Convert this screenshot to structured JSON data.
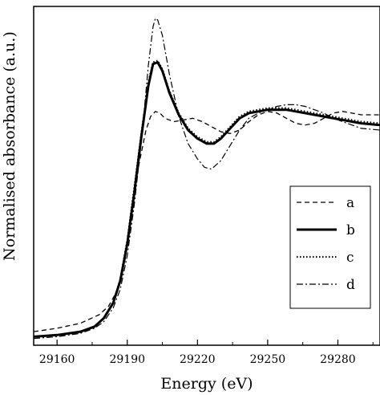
{
  "chart_data": {
    "type": "line",
    "title": "",
    "xlabel": "Energy (eV)",
    "ylabel": "Normalised absorbance (a.u.)",
    "xlim": [
      29150,
      29298
    ],
    "ylim": [
      -0.05,
      1.95
    ],
    "y_tick_labels": false,
    "x_ticks": [
      29160,
      29190,
      29220,
      29250,
      29280
    ],
    "grid": false,
    "legend_position": "right-middle",
    "series": [
      {
        "name": "a",
        "style": "dashed",
        "points": [
          [
            29150,
            0.03
          ],
          [
            29160,
            0.05
          ],
          [
            29170,
            0.08
          ],
          [
            29178,
            0.13
          ],
          [
            29182,
            0.18
          ],
          [
            29186,
            0.28
          ],
          [
            29189,
            0.45
          ],
          [
            29192,
            0.72
          ],
          [
            29195,
            1.02
          ],
          [
            29198,
            1.22
          ],
          [
            29200,
            1.3
          ],
          [
            29202,
            1.33
          ],
          [
            29204,
            1.32
          ],
          [
            29206,
            1.29
          ],
          [
            29210,
            1.27
          ],
          [
            29214,
            1.28
          ],
          [
            29218,
            1.29
          ],
          [
            29222,
            1.27
          ],
          [
            29226,
            1.24
          ],
          [
            29230,
            1.21
          ],
          [
            29234,
            1.2
          ],
          [
            29238,
            1.22
          ],
          [
            29242,
            1.27
          ],
          [
            29246,
            1.31
          ],
          [
            29250,
            1.33
          ],
          [
            29254,
            1.32
          ],
          [
            29258,
            1.29
          ],
          [
            29262,
            1.26
          ],
          [
            29266,
            1.25
          ],
          [
            29270,
            1.26
          ],
          [
            29274,
            1.29
          ],
          [
            29278,
            1.32
          ],
          [
            29282,
            1.33
          ],
          [
            29286,
            1.32
          ],
          [
            29290,
            1.31
          ],
          [
            29298,
            1.31
          ]
        ]
      },
      {
        "name": "b",
        "style": "solid-thick",
        "points": [
          [
            29150,
            0.0
          ],
          [
            29160,
            0.01
          ],
          [
            29170,
            0.03
          ],
          [
            29176,
            0.06
          ],
          [
            29180,
            0.11
          ],
          [
            29184,
            0.2
          ],
          [
            29187,
            0.33
          ],
          [
            29190,
            0.55
          ],
          [
            29193,
            0.85
          ],
          [
            29196,
            1.18
          ],
          [
            29199,
            1.48
          ],
          [
            29201,
            1.61
          ],
          [
            29203,
            1.62
          ],
          [
            29205,
            1.57
          ],
          [
            29208,
            1.44
          ],
          [
            29212,
            1.31
          ],
          [
            29216,
            1.22
          ],
          [
            29220,
            1.17
          ],
          [
            29224,
            1.14
          ],
          [
            29227,
            1.14
          ],
          [
            29230,
            1.17
          ],
          [
            29234,
            1.23
          ],
          [
            29238,
            1.29
          ],
          [
            29242,
            1.32
          ],
          [
            29246,
            1.33
          ],
          [
            29250,
            1.34
          ],
          [
            29254,
            1.34
          ],
          [
            29258,
            1.34
          ],
          [
            29262,
            1.33
          ],
          [
            29266,
            1.32
          ],
          [
            29270,
            1.31
          ],
          [
            29274,
            1.3
          ],
          [
            29278,
            1.29
          ],
          [
            29282,
            1.28
          ],
          [
            29286,
            1.27
          ],
          [
            29290,
            1.26
          ],
          [
            29298,
            1.25
          ]
        ]
      },
      {
        "name": "c",
        "style": "dotted",
        "points": [
          [
            29150,
            0.0
          ],
          [
            29160,
            0.01
          ],
          [
            29170,
            0.03
          ],
          [
            29176,
            0.06
          ],
          [
            29180,
            0.11
          ],
          [
            29184,
            0.2
          ],
          [
            29187,
            0.34
          ],
          [
            29190,
            0.57
          ],
          [
            29193,
            0.88
          ],
          [
            29196,
            1.2
          ],
          [
            29199,
            1.5
          ],
          [
            29201,
            1.62
          ],
          [
            29203,
            1.63
          ],
          [
            29205,
            1.58
          ],
          [
            29208,
            1.45
          ],
          [
            29212,
            1.32
          ],
          [
            29216,
            1.23
          ],
          [
            29220,
            1.18
          ],
          [
            29224,
            1.15
          ],
          [
            29227,
            1.15
          ],
          [
            29230,
            1.18
          ],
          [
            29234,
            1.24
          ],
          [
            29238,
            1.3
          ],
          [
            29242,
            1.33
          ],
          [
            29246,
            1.34
          ],
          [
            29250,
            1.35
          ],
          [
            29254,
            1.35
          ],
          [
            29258,
            1.35
          ],
          [
            29262,
            1.34
          ],
          [
            29266,
            1.33
          ],
          [
            29270,
            1.32
          ],
          [
            29274,
            1.31
          ],
          [
            29278,
            1.3
          ],
          [
            29282,
            1.29
          ],
          [
            29286,
            1.28
          ],
          [
            29290,
            1.27
          ],
          [
            29298,
            1.26
          ]
        ]
      },
      {
        "name": "d",
        "style": "dash-dot",
        "points": [
          [
            29150,
            -0.01
          ],
          [
            29160,
            0.0
          ],
          [
            29170,
            0.02
          ],
          [
            29176,
            0.05
          ],
          [
            29180,
            0.09
          ],
          [
            29184,
            0.17
          ],
          [
            29187,
            0.28
          ],
          [
            29190,
            0.48
          ],
          [
            29193,
            0.78
          ],
          [
            29196,
            1.15
          ],
          [
            29199,
            1.6
          ],
          [
            29201,
            1.83
          ],
          [
            29202,
            1.88
          ],
          [
            29203,
            1.87
          ],
          [
            29205,
            1.78
          ],
          [
            29208,
            1.55
          ],
          [
            29212,
            1.3
          ],
          [
            29216,
            1.14
          ],
          [
            29220,
            1.05
          ],
          [
            29223,
            1.0
          ],
          [
            29226,
            0.99
          ],
          [
            29230,
            1.04
          ],
          [
            29234,
            1.13
          ],
          [
            29238,
            1.22
          ],
          [
            29242,
            1.29
          ],
          [
            29246,
            1.32
          ],
          [
            29250,
            1.34
          ],
          [
            29254,
            1.36
          ],
          [
            29258,
            1.37
          ],
          [
            29262,
            1.37
          ],
          [
            29266,
            1.36
          ],
          [
            29270,
            1.34
          ],
          [
            29274,
            1.32
          ],
          [
            29278,
            1.29
          ],
          [
            29282,
            1.27
          ],
          [
            29286,
            1.25
          ],
          [
            29290,
            1.23
          ],
          [
            29298,
            1.22
          ]
        ]
      }
    ]
  }
}
